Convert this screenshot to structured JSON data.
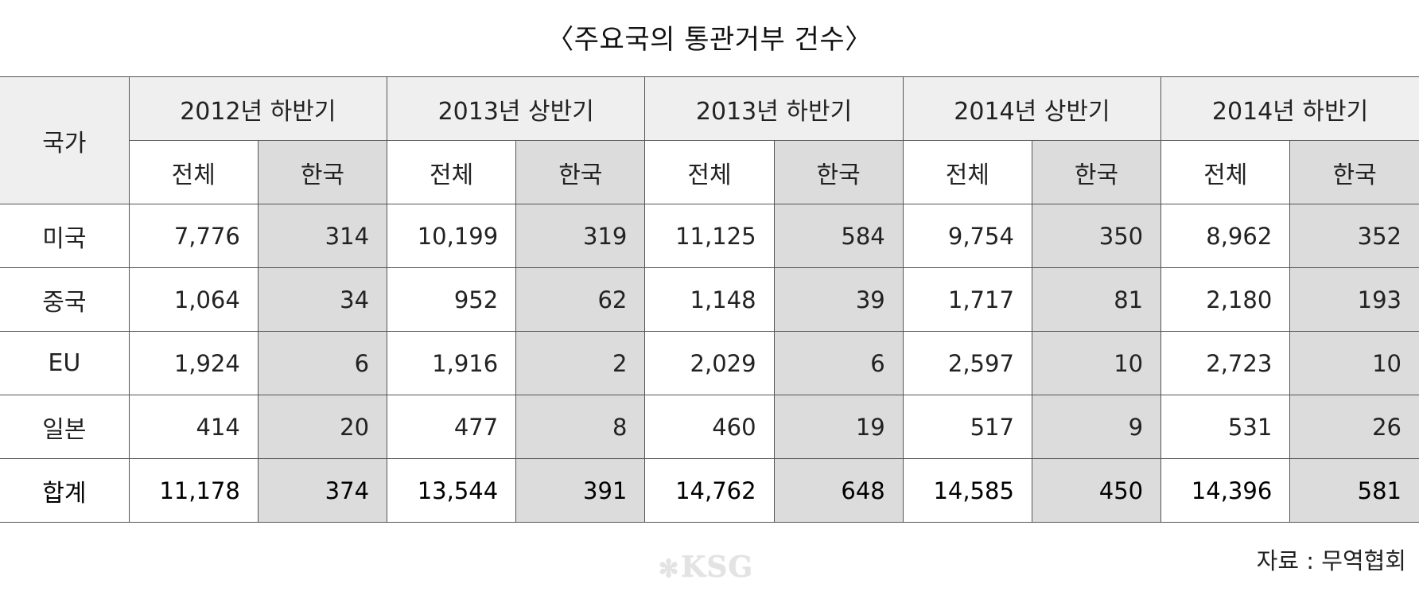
{
  "chart_data": {
    "type": "table",
    "title": "〈주요국의 통관거부 건수〉",
    "row_header_label": "국가",
    "periods": [
      "2012년 하반기",
      "2013년 상반기",
      "2013년 하반기",
      "2014년 상반기",
      "2014년 하반기"
    ],
    "sub_columns": [
      "전체",
      "한국"
    ],
    "rows": [
      {
        "label": "미국",
        "values": [
          "7,776",
          "314",
          "10,199",
          "319",
          "11,125",
          "584",
          "9,754",
          "350",
          "8,962",
          "352"
        ]
      },
      {
        "label": "중국",
        "values": [
          "1,064",
          "34",
          "952",
          "62",
          "1,148",
          "39",
          "1,717",
          "81",
          "2,180",
          "193"
        ]
      },
      {
        "label": "EU",
        "values": [
          "1,924",
          "6",
          "1,916",
          "2",
          "2,029",
          "6",
          "2,597",
          "10",
          "2,723",
          "10"
        ]
      },
      {
        "label": "일본",
        "values": [
          "414",
          "20",
          "477",
          "8",
          "460",
          "19",
          "517",
          "9",
          "531",
          "26"
        ]
      },
      {
        "label": "합계",
        "values": [
          "11,178",
          "374",
          "13,544",
          "391",
          "14,762",
          "648",
          "14,585",
          "450",
          "14,396",
          "581"
        ]
      }
    ],
    "source": "자료 : 무역협회",
    "watermark": "KSG",
    "colors": {
      "header_bg": "#efefef",
      "korea_col_bg": "#dcdcdc",
      "border": "#555555"
    }
  }
}
